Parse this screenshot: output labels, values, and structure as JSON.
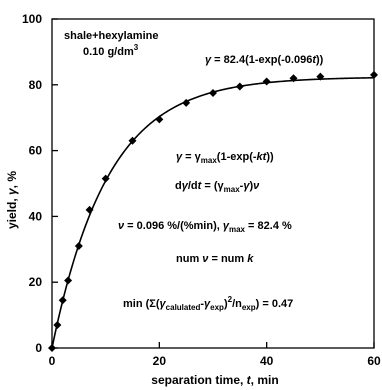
{
  "chart_data": {
    "type": "scatter",
    "title": "",
    "xlabel": {
      "main": "separation time, ",
      "var": "t",
      "unit": ", min"
    },
    "ylabel": {
      "main": "yield, ",
      "var": "γ",
      "unit": ", %"
    },
    "xlim": [
      0,
      60
    ],
    "ylim": [
      0,
      100
    ],
    "xticks": [
      0,
      20,
      40,
      60
    ],
    "yticks": [
      0,
      20,
      40,
      60,
      80,
      100
    ],
    "grid": false,
    "legend": "none",
    "series": [
      {
        "points": [
          [
            0,
            0
          ],
          [
            1,
            7
          ],
          [
            2,
            14.5
          ],
          [
            3,
            20.5
          ],
          [
            5,
            31
          ],
          [
            7,
            42
          ],
          [
            10,
            51.5
          ],
          [
            15,
            63
          ],
          [
            20,
            69.5
          ],
          [
            25,
            74.5
          ],
          [
            30,
            77.5
          ],
          [
            35,
            79.5
          ],
          [
            40,
            81
          ],
          [
            45,
            82
          ],
          [
            50,
            82.5
          ],
          [
            60,
            83
          ]
        ],
        "fit": {
          "gamma_max": 82.4,
          "k": 0.096
        }
      }
    ],
    "annotations": {
      "sample_line1": "shale+hexylamine",
      "sample_line2": "0.10 g/dm",
      "sample_sup": "3",
      "fit_eq": "γ = 82.4(1-exp(-0.096t))",
      "model_eq": "γ = γmax(1-exp(-kt))",
      "rate_eq": "dγ/dt = (γmax-γ)ν",
      "params": "ν = 0.096 %/(%min), γmax = 82.4 %",
      "num_eq": "num ν = num k",
      "error": "min (Σ(γcalulated-γexp)2/nexp) = 0.47"
    },
    "colors": {
      "markers": "#000000",
      "fit_line": "#000000",
      "axes": "#000000"
    }
  }
}
